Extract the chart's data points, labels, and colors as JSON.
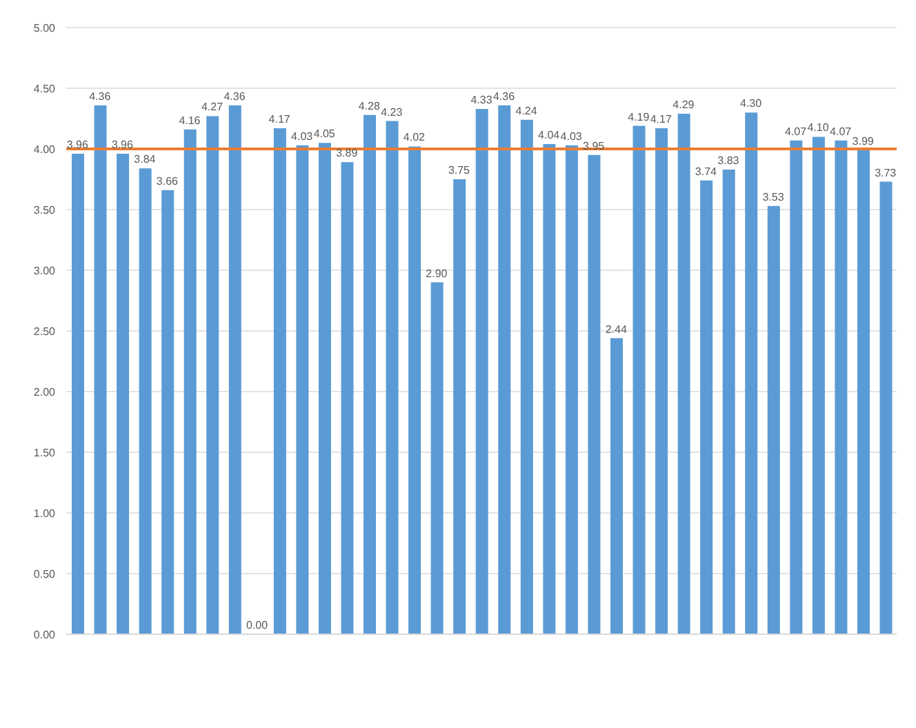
{
  "chart_data": {
    "type": "bar",
    "categories": [
      null,
      null,
      null,
      null,
      null,
      null,
      null,
      null,
      null,
      null,
      null,
      null,
      null,
      null,
      null,
      null,
      null,
      null,
      null,
      null,
      null,
      null,
      null,
      null,
      null,
      null,
      null,
      null,
      null,
      null,
      null,
      null,
      null,
      null,
      null,
      null,
      null
    ],
    "series": [
      {
        "color": "#5b9bd5",
        "values": [
          3.96,
          4.36,
          3.96,
          3.84,
          3.66,
          4.16,
          4.27,
          4.36,
          0,
          4.17,
          4.03,
          4.05,
          3.89,
          4.28,
          4.23,
          4.02,
          2.9,
          3.75,
          4.33,
          4.36,
          4.24,
          4.04,
          4.03,
          3.95,
          2.44,
          4.19,
          4.17,
          4.29,
          3.74,
          3.83,
          4.3,
          3.53,
          4.07,
          4.1,
          4.07,
          3.99,
          3.73
        ],
        "value_labels": [
          "3.96",
          "4.36",
          "3.96",
          "3.84",
          "3.66",
          "4.16",
          "4.27",
          "4.36",
          "0.00",
          "4.17",
          "4.03",
          "4.05",
          "3.89",
          "4.28",
          "4.23",
          "4.02",
          "2.90",
          "3.75",
          "4.33",
          "4.36",
          "4.24",
          "4.04",
          "4.03",
          "3.95",
          "2.44",
          "4.19",
          "4.17",
          "4.29",
          "3.74",
          "3.83",
          "4.30",
          "3.53",
          "4.07",
          "4.10",
          "4.07",
          "3.99",
          "3.73"
        ]
      }
    ],
    "ref_lines": [
      {
        "axis": "y",
        "value": 4.0,
        "color": "#ed7d31"
      }
    ],
    "ylim": [
      0,
      5
    ],
    "yticks": [
      {
        "value": 0,
        "label": "0.00"
      },
      {
        "value": 0.5,
        "label": "0.50"
      },
      {
        "value": 1,
        "label": "1.00"
      },
      {
        "value": 1.5,
        "label": "1.50"
      },
      {
        "value": 2,
        "label": "2.00"
      },
      {
        "value": 2.5,
        "label": "2.50"
      },
      {
        "value": 3,
        "label": "3.00"
      },
      {
        "value": 3.5,
        "label": "3.50"
      },
      {
        "value": 4,
        "label": "4.00"
      },
      {
        "value": 4.5,
        "label": "4.50"
      },
      {
        "value": 5,
        "label": "5.00"
      }
    ],
    "grid": "y"
  }
}
